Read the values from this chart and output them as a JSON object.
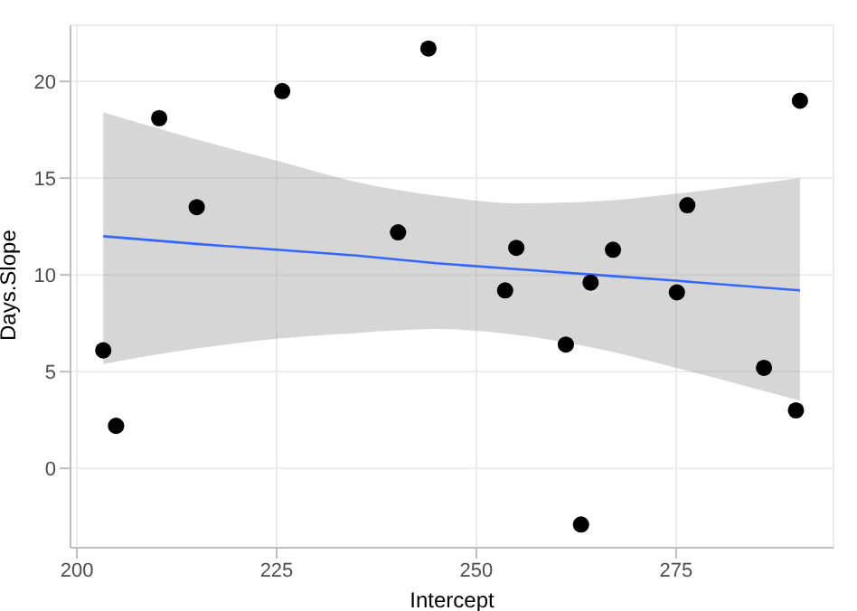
{
  "chart_data": {
    "type": "scatter",
    "xlabel": "Intercept",
    "ylabel": "Days.Slope",
    "xlim": [
      199.2,
      294.7
    ],
    "ylim": [
      -4.1,
      22.9
    ],
    "xticks": [
      200,
      225,
      250,
      275
    ],
    "yticks": [
      0,
      5,
      10,
      15,
      20
    ],
    "grid": true,
    "series": [
      {
        "color": "#000000",
        "marker": "circle",
        "x": [
          203.3,
          204.9,
          210.3,
          215.0,
          225.7,
          240.2,
          244.0,
          253.6,
          255.0,
          261.2,
          263.1,
          264.3,
          267.1,
          275.1,
          276.4,
          286.0,
          290.0,
          290.5
        ],
        "values": [
          6.1,
          2.2,
          18.1,
          13.5,
          19.5,
          12.2,
          21.7,
          9.2,
          11.4,
          6.4,
          -2.9,
          9.6,
          11.3,
          9.1,
          13.6,
          5.2,
          3.0,
          19.0
        ]
      },
      {
        "type": "line",
        "color": "#3366ff",
        "x": [
          203.3,
          215,
          225,
          235,
          245,
          255,
          265,
          275,
          290.5
        ],
        "values": [
          12.0,
          11.6,
          11.3,
          11.0,
          10.6,
          10.3,
          10.0,
          9.7,
          9.2
        ],
        "lower": [
          5.4,
          6.2,
          6.7,
          7.0,
          7.2,
          6.9,
          6.2,
          5.2,
          3.5
        ],
        "upper": [
          18.4,
          17.0,
          15.9,
          14.8,
          14.1,
          13.7,
          13.8,
          14.2,
          15.0
        ]
      }
    ]
  }
}
